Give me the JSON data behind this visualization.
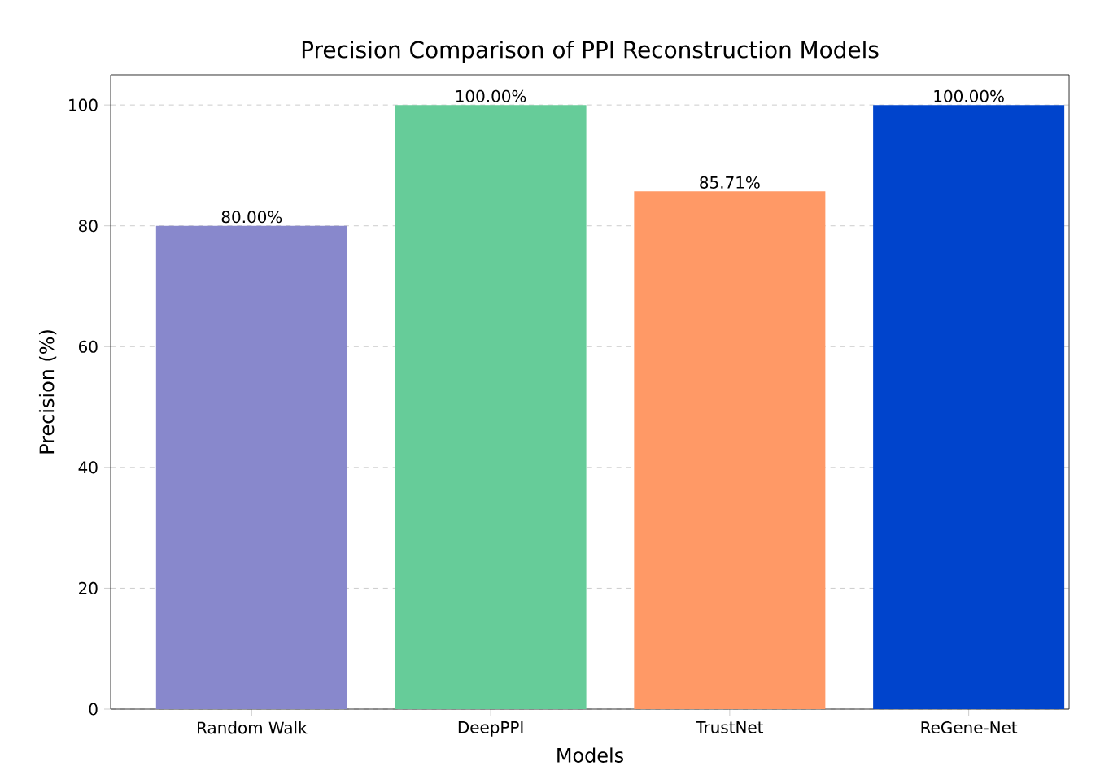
{
  "chart_data": {
    "type": "bar",
    "title": "Precision Comparison of PPI Reconstruction Models",
    "xlabel": "Models",
    "ylabel": "Precision (%)",
    "categories": [
      "Random Walk",
      "DeepPPI",
      "TrustNet",
      "ReGene-Net"
    ],
    "values": [
      80,
      100,
      85.71,
      100
    ],
    "value_labels": [
      "80.00%",
      "100.00%",
      "85.71%",
      "100.00%"
    ],
    "colors": [
      "#8888cc",
      "#66cc99",
      "#ff9966",
      "#0044cc"
    ],
    "ylim": [
      0,
      105
    ],
    "yticks": [
      0,
      20,
      40,
      60,
      80,
      100
    ],
    "grid": "y"
  }
}
